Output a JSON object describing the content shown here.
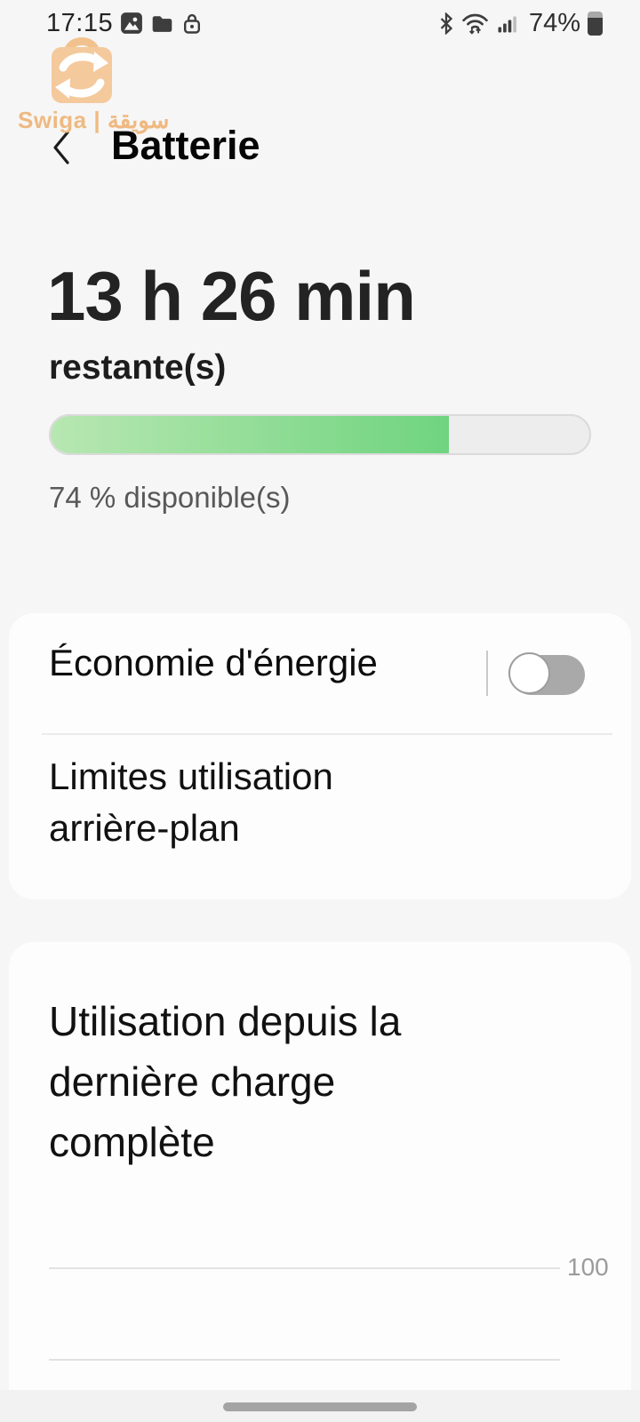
{
  "status_bar": {
    "time": "17:15",
    "battery_percent": "74%",
    "left_icons": [
      "gallery-icon",
      "folder-icon",
      "lock-icon"
    ],
    "right_icons": [
      "bluetooth-icon",
      "wifi-icon",
      "signal-icon",
      "battery-icon"
    ]
  },
  "watermark": {
    "brand": "Swiga | سويقة",
    "color": "#efb981"
  },
  "header": {
    "title": "Batterie"
  },
  "battery_summary": {
    "time_remaining": "13 h 26 min",
    "remaining_label": "restante(s)",
    "percent_available": "74 % disponible(s)",
    "progress_percent": 74,
    "colors": {
      "fill_start": "#b8e7b2",
      "fill_end": "#6fd47f",
      "track": "#ededed"
    }
  },
  "settings_card": {
    "power_saving_label": "Économie d'énergie",
    "power_saving_enabled": false,
    "background_limits_label": "Limites utilisation arrière-plan"
  },
  "usage_card": {
    "title": "Utilisation depuis la dernière charge complète",
    "chart": {
      "type": "line",
      "y_top_label": "100",
      "y_gridlines": [
        100,
        0
      ],
      "ylim": [
        0,
        100
      ],
      "series": []
    }
  }
}
